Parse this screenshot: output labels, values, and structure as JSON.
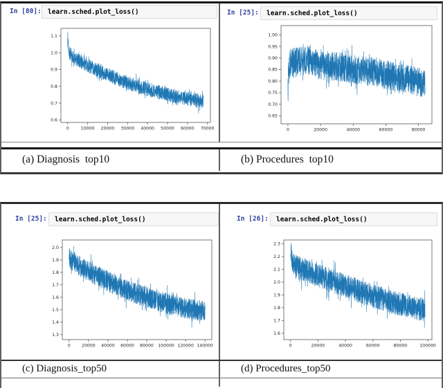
{
  "colors": {
    "line": "#1f77b4",
    "prompt_text": "#303f9f",
    "code_background": "#f7f7f7",
    "code_border": "#dcdcdc",
    "table_border": "#3a3a3a",
    "axes_frame": "#777777"
  },
  "panels": [
    {
      "id": "a",
      "prompt": "In [80]:",
      "code": "learn.sched.plot_loss()",
      "caption": "(a) Diagnosis  top10"
    },
    {
      "id": "b",
      "prompt": "In [25]:",
      "code": "learn.sched.plot_loss()",
      "caption": "(b) Procedures  top10"
    },
    {
      "id": "c",
      "prompt": "In [25]:",
      "code": "learn.sched.plot_loss()",
      "caption": "(c) Diagnosis_top50"
    },
    {
      "id": "d",
      "prompt": "In [26]:",
      "code": "learn.sched.plot_loss()",
      "caption": "(d) Procedures_top50"
    }
  ],
  "chart_data": [
    {
      "type": "line",
      "panel": "a",
      "title": "",
      "xlabel": "",
      "ylabel": "",
      "legend": false,
      "grid": false,
      "line_color": "#1f77b4",
      "x_ticks": [
        0,
        10000,
        20000,
        30000,
        40000,
        50000,
        60000,
        70000
      ],
      "xlim": [
        -3400,
        71500
      ],
      "x_max_data": 68000,
      "y_ticks": [
        0.6,
        0.7,
        0.8,
        0.9,
        1.0,
        1.1
      ],
      "y_fmt": 1,
      "ylim": [
        0.585,
        1.145
      ],
      "trend": [
        [
          0,
          1.09
        ],
        [
          800,
          1.0
        ],
        [
          2000,
          0.975
        ],
        [
          5000,
          0.955
        ],
        [
          10000,
          0.925
        ],
        [
          15000,
          0.895
        ],
        [
          20000,
          0.868
        ],
        [
          25000,
          0.845
        ],
        [
          30000,
          0.822
        ],
        [
          35000,
          0.8
        ],
        [
          40000,
          0.783
        ],
        [
          45000,
          0.768
        ],
        [
          50000,
          0.752
        ],
        [
          55000,
          0.74
        ],
        [
          60000,
          0.728
        ],
        [
          64000,
          0.72
        ],
        [
          68000,
          0.708
        ]
      ],
      "noise": 0.042,
      "n_points": 1500,
      "seed": 7
    },
    {
      "type": "line",
      "panel": "b",
      "title": "",
      "xlabel": "",
      "ylabel": "",
      "legend": false,
      "grid": false,
      "line_color": "#1f77b4",
      "x_ticks": [
        0,
        20000,
        40000,
        60000,
        80000
      ],
      "xlim": [
        -4200,
        88200
      ],
      "x_max_data": 84000,
      "y_ticks": [
        0.65,
        0.7,
        0.75,
        0.8,
        0.85,
        0.9,
        0.95,
        1.0
      ],
      "y_fmt": 2,
      "ylim": [
        0.615,
        1.04
      ],
      "trend": [
        [
          0,
          0.8
        ],
        [
          400,
          0.87
        ],
        [
          2000,
          0.88
        ],
        [
          6000,
          0.885
        ],
        [
          10000,
          0.888
        ],
        [
          13000,
          0.89
        ],
        [
          16000,
          0.878
        ],
        [
          20000,
          0.868
        ],
        [
          26000,
          0.866
        ],
        [
          32000,
          0.86
        ],
        [
          38000,
          0.852
        ],
        [
          44000,
          0.847
        ],
        [
          50000,
          0.84
        ],
        [
          56000,
          0.834
        ],
        [
          62000,
          0.824
        ],
        [
          68000,
          0.816
        ],
        [
          74000,
          0.806
        ],
        [
          80000,
          0.796
        ],
        [
          84000,
          0.786
        ]
      ],
      "noise": 0.063,
      "n_points": 1600,
      "seed": 13
    },
    {
      "type": "line",
      "panel": "c",
      "title": "",
      "xlabel": "",
      "ylabel": "",
      "legend": false,
      "grid": false,
      "line_color": "#1f77b4",
      "x_ticks": [
        0,
        20000,
        40000,
        60000,
        80000,
        100000,
        120000,
        140000
      ],
      "xlim": [
        -7000,
        147000
      ],
      "x_max_data": 140000,
      "y_ticks": [
        1.3,
        1.4,
        1.5,
        1.6,
        1.7,
        1.8,
        1.9,
        2.0
      ],
      "y_fmt": 1,
      "ylim": [
        1.26,
        2.06
      ],
      "trend": [
        [
          0,
          1.94
        ],
        [
          1000,
          1.9
        ],
        [
          3000,
          1.893
        ],
        [
          6000,
          1.88
        ],
        [
          10000,
          1.856
        ],
        [
          15000,
          1.832
        ],
        [
          20000,
          1.81
        ],
        [
          30000,
          1.766
        ],
        [
          40000,
          1.726
        ],
        [
          50000,
          1.69
        ],
        [
          60000,
          1.656
        ],
        [
          70000,
          1.626
        ],
        [
          80000,
          1.6
        ],
        [
          90000,
          1.576
        ],
        [
          100000,
          1.552
        ],
        [
          110000,
          1.532
        ],
        [
          120000,
          1.512
        ],
        [
          130000,
          1.5
        ],
        [
          140000,
          1.486
        ]
      ],
      "noise": 0.083,
      "n_points": 1700,
      "seed": 21
    },
    {
      "type": "line",
      "panel": "d",
      "title": "",
      "xlabel": "",
      "ylabel": "",
      "legend": false,
      "grid": false,
      "line_color": "#1f77b4",
      "x_ticks": [
        0,
        20000,
        40000,
        60000,
        80000,
        100000
      ],
      "xlim": [
        -4900,
        103000
      ],
      "x_max_data": 98000,
      "y_ticks": [
        1.6,
        1.7,
        1.8,
        1.9,
        2.0,
        2.1,
        2.2,
        2.3
      ],
      "y_fmt": 1,
      "ylim": [
        1.55,
        2.33
      ],
      "trend": [
        [
          0,
          2.25
        ],
        [
          1500,
          2.15
        ],
        [
          4000,
          2.12
        ],
        [
          8000,
          2.1
        ],
        [
          12000,
          2.09
        ],
        [
          16000,
          2.07
        ],
        [
          20000,
          2.05
        ],
        [
          30000,
          2.01
        ],
        [
          40000,
          1.97
        ],
        [
          50000,
          1.93
        ],
        [
          60000,
          1.89
        ],
        [
          70000,
          1.858
        ],
        [
          80000,
          1.828
        ],
        [
          90000,
          1.8
        ],
        [
          98000,
          1.78
        ]
      ],
      "noise": 0.093,
      "n_points": 1600,
      "seed": 29
    }
  ]
}
